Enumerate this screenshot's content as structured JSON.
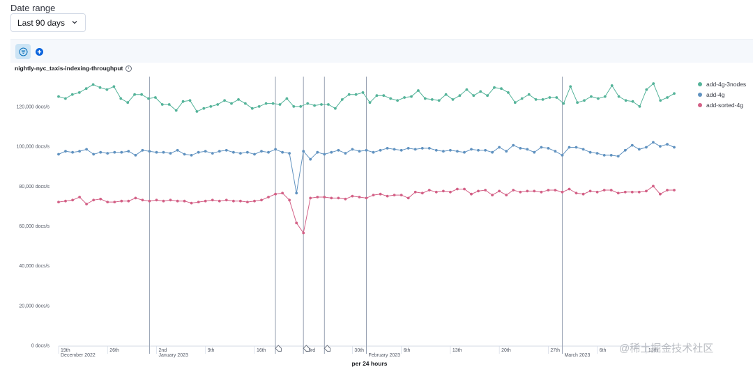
{
  "filters": {
    "date_range_label": "Date range",
    "date_range_value": "Last 90 days"
  },
  "toolbar": {
    "filter_icon": "filter-icon",
    "add_icon": "plus-circle-icon"
  },
  "chart": {
    "title": "nightly-nyc_taxis-indexing-throughput",
    "info_icon": "info-icon",
    "watermark": "@稀土掘金技术社区"
  },
  "chart_data": {
    "type": "line",
    "title": "nightly-nyc_taxis-indexing-throughput",
    "xlabel": "per 24 hours",
    "ylabel": "",
    "ylim": [
      0,
      135000
    ],
    "y_ticks": [
      "0 docs/s",
      "20,000 docs/s",
      "40,000 docs/s",
      "60,000 docs/s",
      "80,000 docs/s",
      "100,000 docs/s",
      "120,000 docs/s"
    ],
    "y_tick_values": [
      0,
      20000,
      40000,
      60000,
      80000,
      100000,
      120000
    ],
    "x_range": [
      "2022-12-19",
      "2023-03-17"
    ],
    "x_ticks": [
      {
        "label": "19th",
        "date": "2022-12-19",
        "sub": "December 2022"
      },
      {
        "label": "26th",
        "date": "2022-12-26",
        "sub": ""
      },
      {
        "label": "2nd",
        "date": "2023-01-02",
        "sub": "January 2023"
      },
      {
        "label": "9th",
        "date": "2023-01-09",
        "sub": ""
      },
      {
        "label": "16th",
        "date": "2023-01-16",
        "sub": ""
      },
      {
        "label": "23rd",
        "date": "2023-01-23",
        "sub": ""
      },
      {
        "label": "30th",
        "date": "2023-01-30",
        "sub": ""
      },
      {
        "label": "",
        "date": "2023-02-01",
        "sub": "February 2023"
      },
      {
        "label": "6th",
        "date": "2023-02-06",
        "sub": ""
      },
      {
        "label": "13th",
        "date": "2023-02-13",
        "sub": ""
      },
      {
        "label": "20th",
        "date": "2023-02-20",
        "sub": ""
      },
      {
        "label": "27th",
        "date": "2023-02-27",
        "sub": ""
      },
      {
        "label": "",
        "date": "2023-03-01",
        "sub": "March 2023"
      },
      {
        "label": "6th",
        "date": "2023-03-06",
        "sub": ""
      },
      {
        "label": "13th",
        "date": "2023-03-13",
        "sub": ""
      }
    ],
    "annotation_lines": [
      "2023-01-01",
      "2023-01-19",
      "2023-01-23",
      "2023-01-26",
      "2023-02-01",
      "2023-03-01"
    ],
    "annotation_markers": [
      "2023-01-19",
      "2023-01-23",
      "2023-01-26"
    ],
    "series": [
      {
        "name": "add-4g-3nodes",
        "color": "#54b399",
        "values": [
          125000,
          124000,
          126000,
          127000,
          129000,
          131000,
          129500,
          128500,
          130000,
          124000,
          122000,
          126000,
          126000,
          124000,
          124500,
          121000,
          121000,
          118000,
          122500,
          123000,
          117500,
          119000,
          120000,
          121000,
          123000,
          121500,
          123500,
          121500,
          119000,
          120000,
          121500,
          121500,
          121000,
          124000,
          120000,
          120000,
          121500,
          120500,
          121000,
          121000,
          119000,
          123500,
          126000,
          126000,
          127000,
          122000,
          125500,
          125500,
          124000,
          123000,
          124500,
          125000,
          128000,
          124000,
          123500,
          123000,
          126000,
          123500,
          125500,
          128500,
          125500,
          127500,
          125500,
          129500,
          129000,
          127000,
          122000,
          124000,
          126000,
          123500,
          123500,
          124500,
          124500,
          121500,
          130000,
          122000,
          123000,
          125000,
          124000,
          125000,
          130500,
          125000,
          123000,
          122500,
          120000,
          128500,
          131500,
          123000,
          124500,
          126500
        ]
      },
      {
        "name": "add-4g",
        "color": "#6092c0",
        "values": [
          96000,
          97500,
          97000,
          97500,
          98500,
          96000,
          97000,
          96500,
          97000,
          97000,
          97500,
          95500,
          98000,
          97500,
          97000,
          97000,
          96500,
          98000,
          96000,
          95500,
          97000,
          97500,
          96500,
          97500,
          98000,
          97000,
          96500,
          97000,
          96000,
          97500,
          97000,
          98500,
          97000,
          96500,
          76500,
          97500,
          93500,
          97000,
          96000,
          97000,
          98000,
          96500,
          98500,
          97500,
          98000,
          97000,
          98000,
          99000,
          98500,
          98000,
          99000,
          98500,
          99000,
          99000,
          98000,
          97500,
          98000,
          97500,
          97000,
          98500,
          98000,
          98000,
          97000,
          99500,
          97500,
          100500,
          99000,
          98500,
          97000,
          99500,
          99000,
          97500,
          95500,
          99500,
          99500,
          98500,
          97000,
          96500,
          95500,
          95500,
          95000,
          98000,
          100500,
          98500,
          99500,
          102000,
          100000,
          101000,
          99500
        ]
      },
      {
        "name": "add-sorted-4g",
        "color": "#d36086",
        "values": [
          72000,
          72500,
          73000,
          74500,
          71000,
          73000,
          73500,
          72000,
          72000,
          72500,
          72500,
          74000,
          73000,
          72500,
          73000,
          72500,
          73000,
          72500,
          72500,
          71500,
          72000,
          72500,
          73000,
          72500,
          73000,
          72500,
          72500,
          72000,
          72500,
          73000,
          74500,
          76000,
          76500,
          73000,
          61500,
          56500,
          74000,
          74500,
          74500,
          74000,
          74000,
          73500,
          75000,
          74500,
          74000,
          75500,
          76000,
          75000,
          75500,
          75500,
          74000,
          77000,
          76500,
          78000,
          77000,
          77500,
          77000,
          78500,
          78500,
          76000,
          77500,
          78000,
          75500,
          77500,
          75500,
          78000,
          77000,
          77500,
          77500,
          77000,
          78000,
          78000,
          77000,
          78500,
          76500,
          76000,
          77500,
          77000,
          78000,
          78000,
          76500,
          77000,
          77000,
          77000,
          77500,
          80000,
          76000,
          78000,
          78000
        ]
      }
    ],
    "grid": false,
    "legend": "right"
  }
}
